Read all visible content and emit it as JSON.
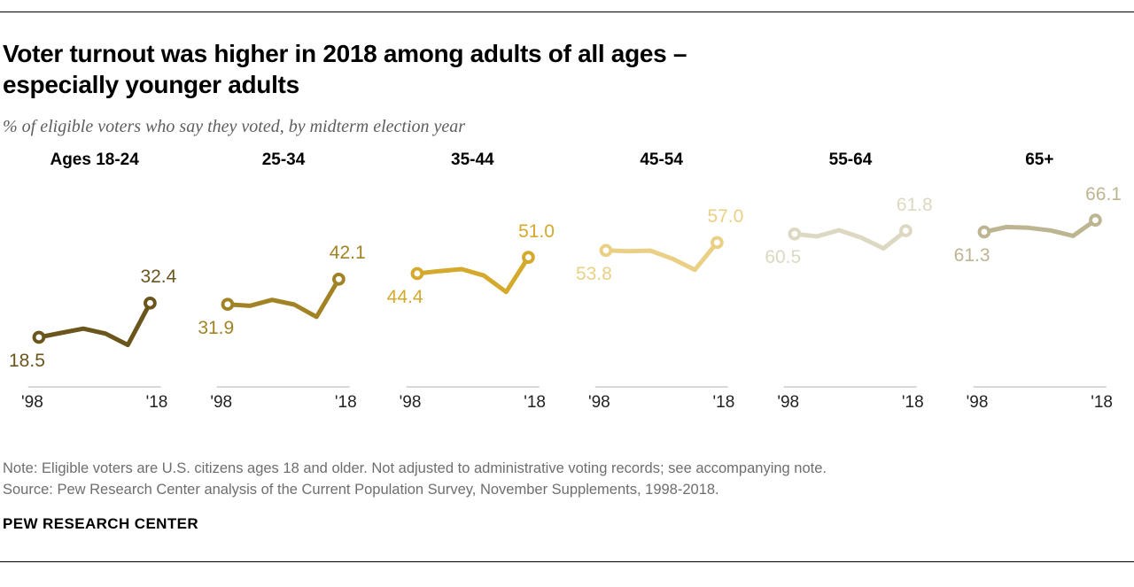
{
  "header": {
    "title_line1": "Voter turnout was higher in 2018 among adults of all ages –",
    "title_line2": "especially younger adults",
    "subtitle": "% of eligible voters who say they voted, by midterm election year"
  },
  "chart_data": {
    "type": "line",
    "layout": "small-multiples",
    "x": [
      1998,
      2002,
      2006,
      2010,
      2014,
      2018
    ],
    "x_axis_labels": [
      "'98",
      "'18"
    ],
    "ylabel": "% of eligible voters who say they voted",
    "grid": false,
    "axis_color": "#cbcbcb",
    "panels": [
      {
        "label": "Ages 18-24",
        "color": "#6a551c",
        "values": [
          18.5,
          20.3,
          22.0,
          20.0,
          15.4,
          32.4
        ],
        "start_label": "18.5",
        "end_label": "32.4"
      },
      {
        "label": "25-34",
        "color": "#a18325",
        "values": [
          31.9,
          31.3,
          33.7,
          31.8,
          26.8,
          42.1
        ],
        "start_label": "31.9",
        "end_label": "42.1"
      },
      {
        "label": "35-44",
        "color": "#d4a92c",
        "values": [
          44.4,
          45.4,
          46.2,
          43.6,
          36.9,
          51.0
        ],
        "start_label": "44.4",
        "end_label": "51.0"
      },
      {
        "label": "45-54",
        "color": "#e9d085",
        "values": [
          53.8,
          53.5,
          53.7,
          50.4,
          45.9,
          57.0
        ],
        "start_label": "53.8",
        "end_label": "57.0"
      },
      {
        "label": "55-64",
        "color": "#dcd8c2",
        "values": [
          60.5,
          59.5,
          62.0,
          59.0,
          54.6,
          61.8
        ],
        "start_label": "60.5",
        "end_label": "61.8"
      },
      {
        "label": "65+",
        "color": "#bdb592",
        "values": [
          61.3,
          63.3,
          63.0,
          61.9,
          59.7,
          66.1
        ],
        "start_label": "61.3",
        "end_label": "66.1"
      }
    ]
  },
  "footer": {
    "note": "Note: Eligible voters are U.S. citizens ages 18 and older. Not adjusted to administrative voting records; see accompanying note.",
    "source": "Source: Pew Research Center analysis of the Current Population Survey, November Supplements, 1998-2018.",
    "brand": "PEW RESEARCH CENTER"
  }
}
